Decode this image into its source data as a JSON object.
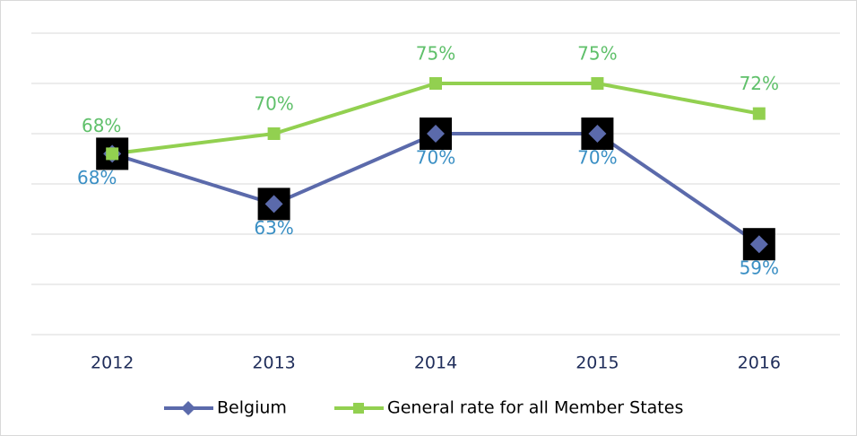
{
  "chart_data": {
    "type": "line",
    "categories": [
      "2012",
      "2013",
      "2014",
      "2015",
      "2016"
    ],
    "series": [
      {
        "name": "Belgium",
        "color": "#5b6aab",
        "label_color": "#3a8fc4",
        "values": [
          68,
          63,
          70,
          70,
          59
        ],
        "value_labels": [
          "68%",
          "63%",
          "70%",
          "70%",
          "59%"
        ]
      },
      {
        "name": "General rate for all Member States",
        "color": "#92d050",
        "label_color": "#5fc06a",
        "values": [
          68,
          70,
          75,
          75,
          72
        ],
        "value_labels": [
          "68%",
          "70%",
          "75%",
          "75%",
          "72%"
        ]
      }
    ],
    "ylim": [
      50,
      80
    ],
    "yticks": [
      50,
      55,
      60,
      65,
      70,
      75,
      80
    ],
    "grid": true
  }
}
